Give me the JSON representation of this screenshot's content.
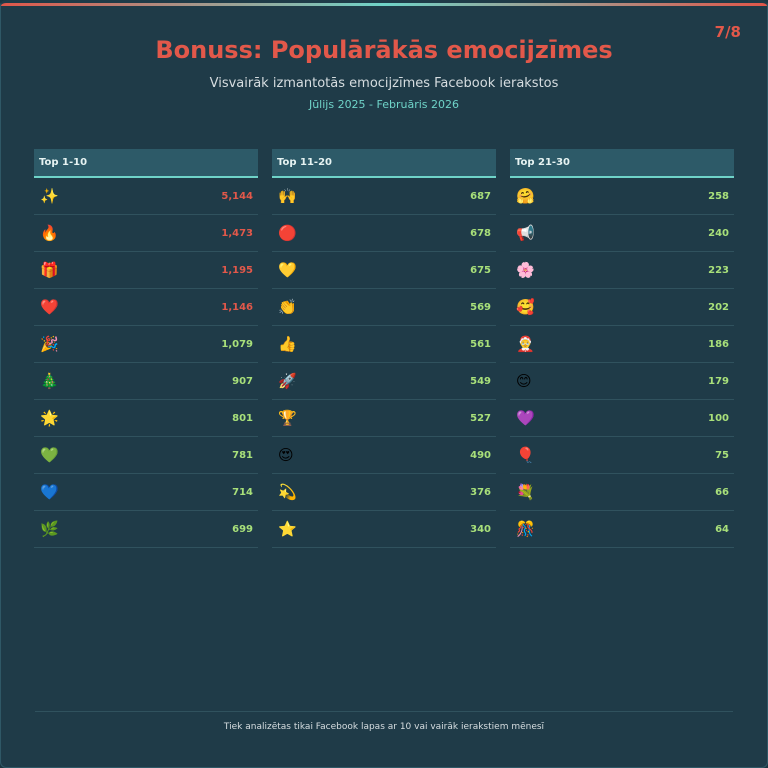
{
  "header": {
    "title": "Bonuss: Populārākās emocijzīmes",
    "subtitle": "Visvairāk izmantotās emocijzīmes Facebook ierakstos",
    "date_range": "Jūlijs 2025 - Februāris 2026",
    "page_indicator": "7/8"
  },
  "columns": [
    {
      "title": "Top 1-10",
      "rows": [
        {
          "emoji": "✨",
          "count": "5,144"
        },
        {
          "emoji": "🔥",
          "count": "1,473"
        },
        {
          "emoji": "🎁",
          "count": "1,195"
        },
        {
          "emoji": "❤️",
          "count": "1,146"
        },
        {
          "emoji": "🎉",
          "count": "1,079"
        },
        {
          "emoji": "🎄",
          "count": "907"
        },
        {
          "emoji": "🌟",
          "count": "801"
        },
        {
          "emoji": "💚",
          "count": "781"
        },
        {
          "emoji": "💙",
          "count": "714"
        },
        {
          "emoji": "🌿",
          "count": "699"
        }
      ]
    },
    {
      "title": "Top 11-20",
      "rows": [
        {
          "emoji": "🙌",
          "count": "687"
        },
        {
          "emoji": "🔴",
          "count": "678"
        },
        {
          "emoji": "💛",
          "count": "675"
        },
        {
          "emoji": "👏",
          "count": "569"
        },
        {
          "emoji": "👍",
          "count": "561"
        },
        {
          "emoji": "🚀",
          "count": "549"
        },
        {
          "emoji": "🏆",
          "count": "527"
        },
        {
          "emoji": "😍",
          "count": "490"
        },
        {
          "emoji": "💫",
          "count": "376"
        },
        {
          "emoji": "⭐",
          "count": "340"
        }
      ]
    },
    {
      "title": "Top 21-30",
      "rows": [
        {
          "emoji": "🤗",
          "count": "258"
        },
        {
          "emoji": "📢",
          "count": "240"
        },
        {
          "emoji": "🌸",
          "count": "223"
        },
        {
          "emoji": "🥰",
          "count": "202"
        },
        {
          "emoji": "🤶",
          "count": "186"
        },
        {
          "emoji": "😊",
          "count": "179"
        },
        {
          "emoji": "💜",
          "count": "100"
        },
        {
          "emoji": "🎈",
          "count": "75"
        },
        {
          "emoji": "💐",
          "count": "66"
        },
        {
          "emoji": "🎊",
          "count": "64"
        }
      ]
    }
  ],
  "footer": "Tiek analizētas tikai Facebook lapas ar 10 vai vairāk ierakstiem mēnesī"
}
